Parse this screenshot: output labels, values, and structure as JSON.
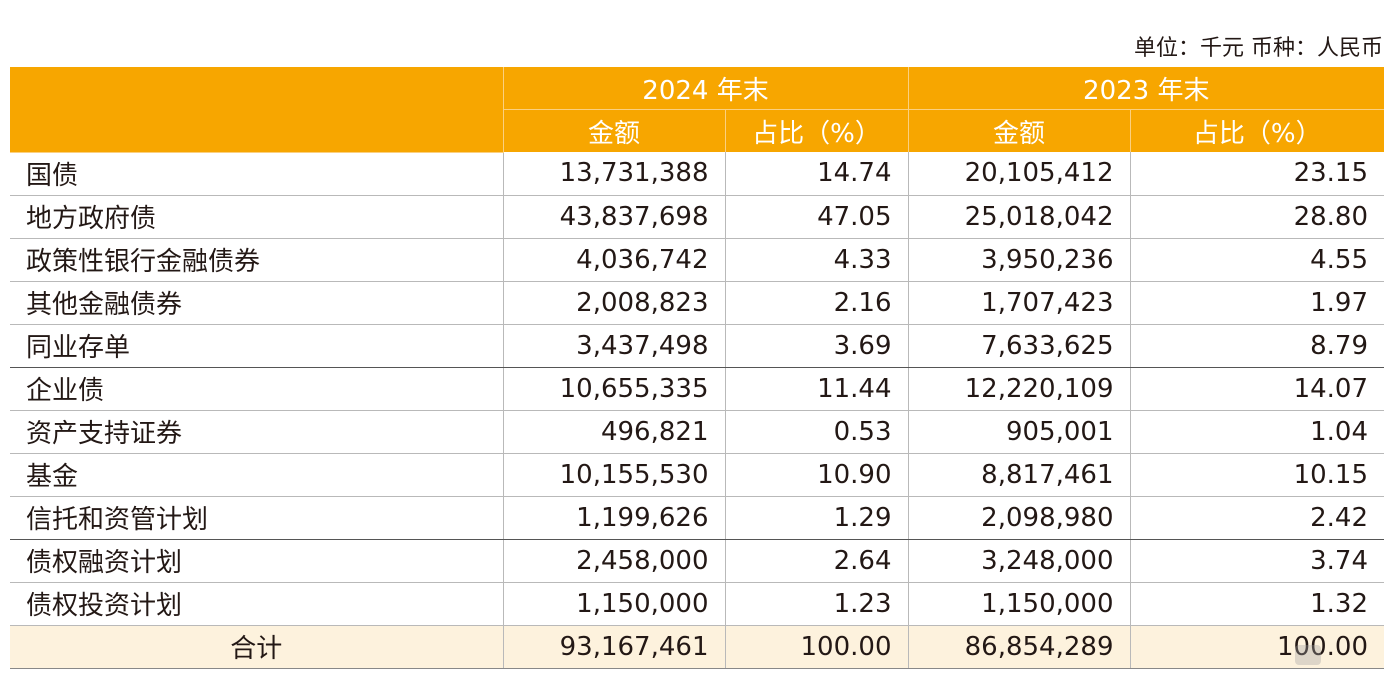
{
  "unit_label": "单位：千元 币种：人民币",
  "header": {
    "year_2024": "2024 年末",
    "year_2023": "2023 年末",
    "amount": "金额",
    "ratio": "占比（%）"
  },
  "rows": [
    {
      "name": "国债",
      "a2024": "13,731,388",
      "p2024": "14.74",
      "a2023": "20,105,412",
      "p2023": "23.15"
    },
    {
      "name": "地方政府债",
      "a2024": "43,837,698",
      "p2024": "47.05",
      "a2023": "25,018,042",
      "p2023": "28.80"
    },
    {
      "name": "政策性银行金融债券",
      "a2024": "4,036,742",
      "p2024": "4.33",
      "a2023": "3,950,236",
      "p2023": "4.55"
    },
    {
      "name": "其他金融债券",
      "a2024": "2,008,823",
      "p2024": "2.16",
      "a2023": "1,707,423",
      "p2023": "1.97"
    },
    {
      "name": "同业存单",
      "a2024": "3,437,498",
      "p2024": "3.69",
      "a2023": "7,633,625",
      "p2023": "8.79"
    },
    {
      "name": "企业债",
      "a2024": "10,655,335",
      "p2024": "11.44",
      "a2023": "12,220,109",
      "p2023": "14.07"
    },
    {
      "name": "资产支持证券",
      "a2024": "496,821",
      "p2024": "0.53",
      "a2023": "905,001",
      "p2023": "1.04"
    },
    {
      "name": "基金",
      "a2024": "10,155,530",
      "p2024": "10.90",
      "a2023": "8,817,461",
      "p2023": "10.15"
    },
    {
      "name": "信托和资管计划",
      "a2024": "1,199,626",
      "p2024": "1.29",
      "a2023": "2,098,980",
      "p2023": "2.42"
    },
    {
      "name": "债权融资计划",
      "a2024": "2,458,000",
      "p2024": "2.64",
      "a2023": "3,248,000",
      "p2023": "3.74"
    },
    {
      "name": "债权投资计划",
      "a2024": "1,150,000",
      "p2024": "1.23",
      "a2023": "1,150,000",
      "p2023": "1.32"
    }
  ],
  "total": {
    "name": "合计",
    "a2024": "93,167,461",
    "p2024": "100.00",
    "a2023": "86,854,289",
    "p2023": "100.00"
  }
}
